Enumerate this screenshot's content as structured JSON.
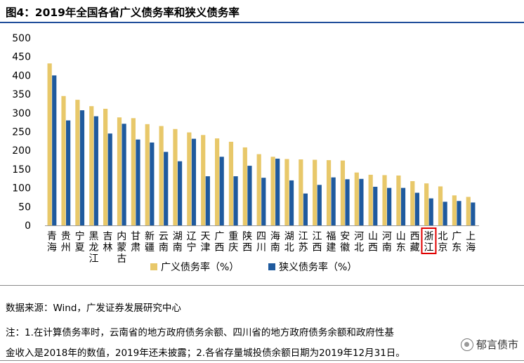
{
  "title": "图4：2019年全国各省广义债务率和狭义债务率",
  "chart_data": {
    "type": "bar",
    "categories": [
      [
        "青",
        "海"
      ],
      [
        "贵",
        "州"
      ],
      [
        "宁",
        "夏"
      ],
      [
        "黑",
        "龙",
        "江"
      ],
      [
        "吉",
        "林"
      ],
      [
        "内",
        "蒙",
        "古"
      ],
      [
        "甘",
        "肃"
      ],
      [
        "新",
        "疆"
      ],
      [
        "云",
        "南"
      ],
      [
        "湖",
        "南"
      ],
      [
        "辽",
        "宁"
      ],
      [
        "天",
        "津"
      ],
      [
        "广",
        "西"
      ],
      [
        "重",
        "庆"
      ],
      [
        "陕",
        "西"
      ],
      [
        "四",
        "川"
      ],
      [
        "海",
        "南"
      ],
      [
        "湖",
        "北"
      ],
      [
        "江",
        "苏"
      ],
      [
        "江",
        "西"
      ],
      [
        "福",
        "建"
      ],
      [
        "安",
        "徽"
      ],
      [
        "河",
        "北"
      ],
      [
        "山",
        "西"
      ],
      [
        "河",
        "南"
      ],
      [
        "山",
        "东"
      ],
      [
        "西",
        "藏"
      ],
      [
        "浙",
        "江"
      ],
      [
        "北",
        "京"
      ],
      [
        "广",
        "东"
      ],
      [
        "上",
        "海"
      ]
    ],
    "series": [
      {
        "name": "广义债务率（%）",
        "color": "#e8c86a",
        "values": [
          432,
          345,
          335,
          318,
          311,
          288,
          286,
          270,
          265,
          257,
          248,
          241,
          232,
          223,
          208,
          190,
          183,
          177,
          176,
          175,
          174,
          173,
          141,
          135,
          134,
          133,
          118,
          112,
          104,
          80,
          76
        ]
      },
      {
        "name": "狭义债务率（%）",
        "color": "#1f5a9e",
        "values": [
          400,
          280,
          307,
          291,
          245,
          271,
          229,
          221,
          196,
          171,
          231,
          131,
          183,
          131,
          159,
          127,
          178,
          120,
          85,
          108,
          128,
          123,
          124,
          103,
          100,
          100,
          87,
          72,
          63,
          65,
          61
        ]
      }
    ],
    "ylim": [
      0,
      500
    ],
    "yticks": [
      0,
      50,
      100,
      150,
      200,
      250,
      300,
      350,
      400,
      450,
      500
    ],
    "highlight": "浙江",
    "legend_position": "bottom"
  },
  "notes": {
    "source": "数据来源：Wind，广发证券发展研究中心",
    "line1": "注：1.在计算债务率时，云南省的地方政府债务余额、四川省的地方政府债务余额和政府性基",
    "line2": "金收入是2018年的数值，2019年还未披露；2.各省存量城投债余额日期为2019年12月31日。"
  },
  "watermark": "郁言债市"
}
